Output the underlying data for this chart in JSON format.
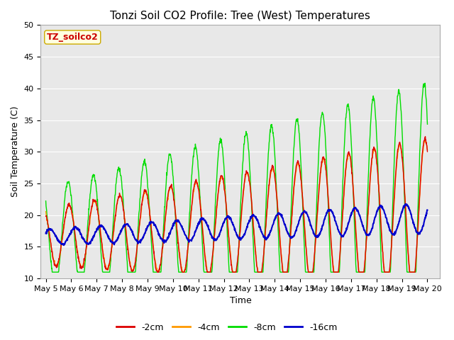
{
  "title": "Tonzi Soil CO2 Profile: Tree (West) Temperatures",
  "xlabel": "Time",
  "ylabel": "Soil Temperature (C)",
  "ylim": [
    10,
    50
  ],
  "annotation": "TZ_soilco2",
  "colors": {
    "neg2cm": "#dd0000",
    "neg4cm": "#ff9900",
    "neg8cm": "#00dd00",
    "neg16cm": "#0000cc"
  },
  "legend_labels": [
    "-2cm",
    "-4cm",
    "-8cm",
    "-16cm"
  ],
  "x_tick_labels": [
    "May 5",
    "May 6",
    "May 7",
    "May 8",
    "May 9",
    "May 10",
    "May 11",
    "May 12",
    "May 13",
    "May 14",
    "May 15",
    "May 16",
    "May 17",
    "May 18",
    "May 19",
    "May 20"
  ],
  "fig_bg_color": "#ffffff",
  "plot_bg_color": "#e8e8e8",
  "grid_color": "#ffffff",
  "title_fontsize": 11,
  "axis_fontsize": 9,
  "tick_fontsize": 8,
  "legend_fontsize": 9
}
